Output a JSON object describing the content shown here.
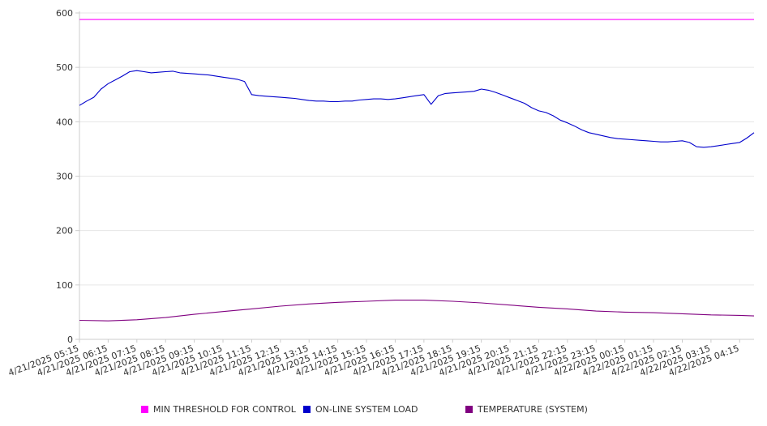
{
  "chart_data": {
    "type": "line",
    "ylim": [
      0,
      600
    ],
    "yticks": [
      0,
      100,
      200,
      300,
      400,
      500,
      600
    ],
    "grid": true,
    "legend_position": "bottom",
    "x_tick_labels": [
      "4/21/2025 05:15",
      "4/21/2025 06:15",
      "4/21/2025 07:15",
      "4/21/2025 08:15",
      "4/21/2025 09:15",
      "4/21/2025 10:15",
      "4/21/2025 11:15",
      "4/21/2025 12:15",
      "4/21/2025 13:15",
      "4/21/2025 14:15",
      "4/21/2025 15:15",
      "4/21/2025 16:15",
      "4/21/2025 17:15",
      "4/21/2025 18:15",
      "4/21/2025 19:15",
      "4/21/2025 20:15",
      "4/21/2025 21:15",
      "4/21/2025 22:15",
      "4/21/2025 23:15",
      "4/22/2025 00:15",
      "4/22/2025 01:15",
      "4/22/2025 02:15",
      "4/22/2025 03:15",
      "4/22/2025 04:15"
    ],
    "series": [
      {
        "name": "MIN THRESHOLD FOR CONTROL",
        "color": "#ff00ff",
        "x": [
          "4/21/2025 05:15",
          "4/22/2025 04:45"
        ],
        "y": [
          588,
          588
        ]
      },
      {
        "name": "ON-LINE SYSTEM LOAD",
        "color": "#0000cc",
        "x": [
          "4/21/2025 05:15",
          "4/21/2025 05:30",
          "4/21/2025 05:45",
          "4/21/2025 06:00",
          "4/21/2025 06:15",
          "4/21/2025 06:30",
          "4/21/2025 06:45",
          "4/21/2025 07:00",
          "4/21/2025 07:15",
          "4/21/2025 07:30",
          "4/21/2025 07:45",
          "4/21/2025 08:00",
          "4/21/2025 08:15",
          "4/21/2025 08:30",
          "4/21/2025 08:45",
          "4/21/2025 09:00",
          "4/21/2025 09:15",
          "4/21/2025 09:30",
          "4/21/2025 09:45",
          "4/21/2025 10:00",
          "4/21/2025 10:15",
          "4/21/2025 10:30",
          "4/21/2025 10:45",
          "4/21/2025 11:00",
          "4/21/2025 11:15",
          "4/21/2025 11:30",
          "4/21/2025 11:45",
          "4/21/2025 12:00",
          "4/21/2025 12:15",
          "4/21/2025 12:30",
          "4/21/2025 12:45",
          "4/21/2025 13:00",
          "4/21/2025 13:15",
          "4/21/2025 13:30",
          "4/21/2025 13:45",
          "4/21/2025 14:00",
          "4/21/2025 14:15",
          "4/21/2025 14:30",
          "4/21/2025 14:45",
          "4/21/2025 15:00",
          "4/21/2025 15:15",
          "4/21/2025 15:30",
          "4/21/2025 15:45",
          "4/21/2025 16:00",
          "4/21/2025 16:15",
          "4/21/2025 16:30",
          "4/21/2025 16:45",
          "4/21/2025 17:00",
          "4/21/2025 17:15",
          "4/21/2025 17:30",
          "4/21/2025 17:45",
          "4/21/2025 18:00",
          "4/21/2025 18:15",
          "4/21/2025 18:30",
          "4/21/2025 18:45",
          "4/21/2025 19:00",
          "4/21/2025 19:15",
          "4/21/2025 19:30",
          "4/21/2025 19:45",
          "4/21/2025 20:00",
          "4/21/2025 20:15",
          "4/21/2025 20:30",
          "4/21/2025 20:45",
          "4/21/2025 21:00",
          "4/21/2025 21:15",
          "4/21/2025 21:30",
          "4/21/2025 21:45",
          "4/21/2025 22:00",
          "4/21/2025 22:15",
          "4/21/2025 22:30",
          "4/21/2025 22:45",
          "4/21/2025 23:00",
          "4/21/2025 23:15",
          "4/21/2025 23:30",
          "4/21/2025 23:45",
          "4/22/2025 00:00",
          "4/22/2025 00:15",
          "4/22/2025 00:30",
          "4/22/2025 00:45",
          "4/22/2025 01:00",
          "4/22/2025 01:15",
          "4/22/2025 01:30",
          "4/22/2025 01:45",
          "4/22/2025 02:00",
          "4/22/2025 02:15",
          "4/22/2025 02:30",
          "4/22/2025 02:45",
          "4/22/2025 03:00",
          "4/22/2025 03:15",
          "4/22/2025 03:30",
          "4/22/2025 03:45",
          "4/22/2025 04:00",
          "4/22/2025 04:15",
          "4/22/2025 04:30",
          "4/22/2025 04:45"
        ],
        "y": [
          430,
          438,
          445,
          460,
          470,
          477,
          484,
          492,
          494,
          492,
          490,
          491,
          492,
          493,
          490,
          489,
          488,
          487,
          486,
          484,
          482,
          480,
          478,
          474,
          450,
          448,
          447,
          446,
          445,
          444,
          443,
          441,
          439,
          438,
          438,
          437,
          437,
          438,
          438,
          440,
          441,
          442,
          442,
          441,
          442,
          444,
          446,
          448,
          450,
          432,
          448,
          452,
          453,
          454,
          455,
          456,
          460,
          458,
          454,
          449,
          444,
          439,
          434,
          426,
          420,
          417,
          411,
          403,
          398,
          392,
          385,
          380,
          377,
          374,
          371,
          369,
          368,
          367,
          366,
          365,
          364,
          363,
          363,
          364,
          365,
          362,
          354,
          353,
          354,
          356,
          358,
          360,
          362,
          370,
          380
        ]
      },
      {
        "name": "TEMPERATURE (SYSTEM)",
        "color": "#800080",
        "x": [
          "4/21/2025 05:15",
          "4/21/2025 06:15",
          "4/21/2025 07:15",
          "4/21/2025 08:15",
          "4/21/2025 09:15",
          "4/21/2025 10:15",
          "4/21/2025 11:15",
          "4/21/2025 12:15",
          "4/21/2025 13:15",
          "4/21/2025 14:15",
          "4/21/2025 15:15",
          "4/21/2025 16:15",
          "4/21/2025 17:15",
          "4/21/2025 18:15",
          "4/21/2025 19:15",
          "4/21/2025 20:15",
          "4/21/2025 21:15",
          "4/21/2025 22:15",
          "4/21/2025 23:15",
          "4/22/2025 00:15",
          "4/22/2025 01:15",
          "4/22/2025 02:15",
          "4/22/2025 03:15",
          "4/22/2025 04:15",
          "4/22/2025 04:45"
        ],
        "y": [
          35,
          34,
          36,
          40,
          46,
          51,
          56,
          61,
          65,
          68,
          70,
          72,
          72,
          70,
          67,
          63,
          59,
          56,
          52,
          50,
          49,
          47,
          45,
          44,
          43
        ]
      }
    ]
  }
}
